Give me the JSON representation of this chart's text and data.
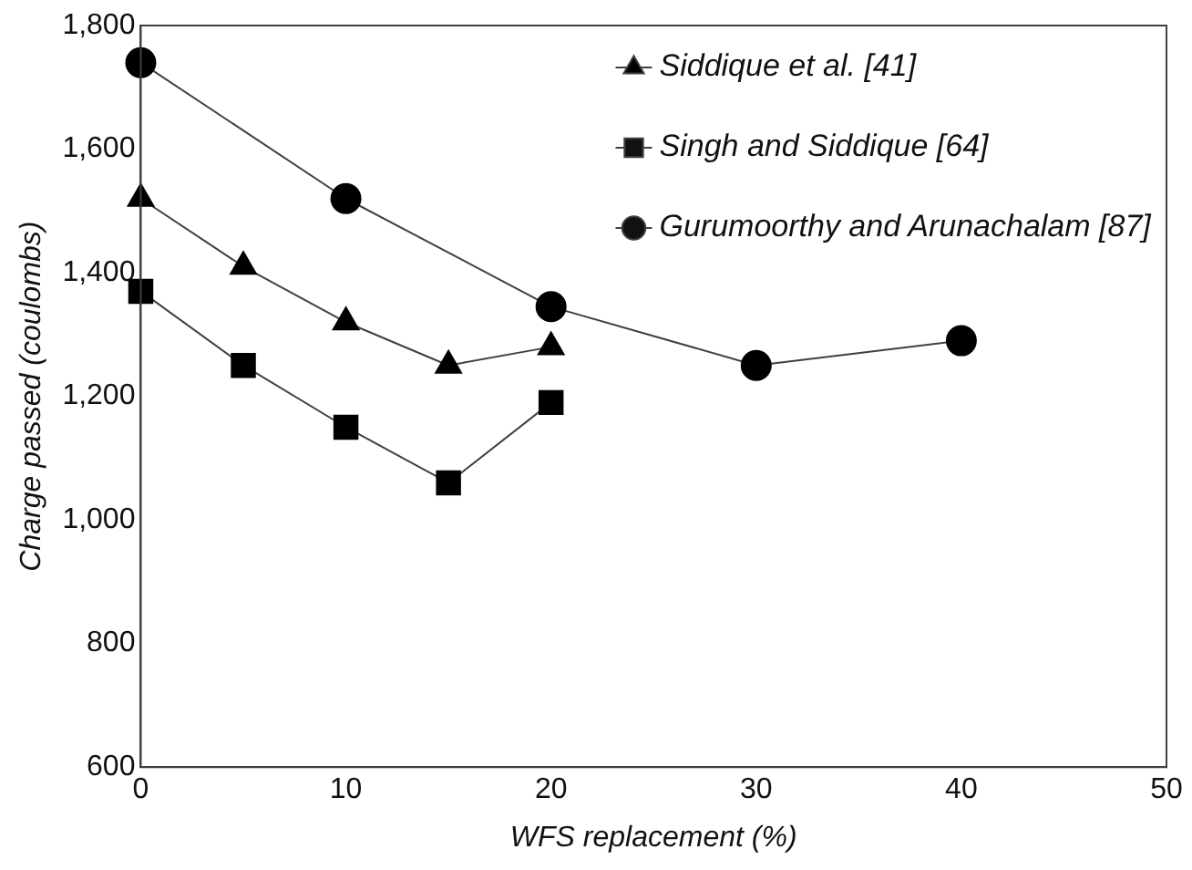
{
  "chart_data": {
    "type": "line",
    "xlabel": "WFS replacement (%)",
    "ylabel": "Charge passed (coulombs)",
    "xlim": [
      0,
      50
    ],
    "xticks": [
      0,
      10,
      20,
      30,
      40,
      50
    ],
    "ylim": [
      600,
      1800
    ],
    "yticks": [
      {
        "value": 600,
        "label": "600"
      },
      {
        "value": 800,
        "label": "800"
      },
      {
        "value": 1000,
        "label": "1,000"
      },
      {
        "value": 1200,
        "label": "1,200"
      },
      {
        "value": 1400,
        "label": "1,400"
      },
      {
        "value": 1600,
        "label": "1,600"
      },
      {
        "value": 1800,
        "label": "1,800"
      }
    ],
    "grid": false,
    "legend": "top right",
    "line_style": "solid",
    "series": [
      {
        "name": "Siddique et al. [41]",
        "color": "#000000",
        "marker": "triangle",
        "x": [
          0,
          5,
          10,
          15,
          20
        ],
        "values": [
          1520,
          1410,
          1320,
          1250,
          1280
        ]
      },
      {
        "name": "Singh and Siddique [64]",
        "color": "#000000",
        "marker": "square",
        "x": [
          0,
          5,
          10,
          15,
          20
        ],
        "values": [
          1370,
          1250,
          1150,
          1060,
          1190
        ]
      },
      {
        "name": "Gurumoorthy and Arunachalam [87]",
        "color": "#000000",
        "marker": "circle",
        "x": [
          0,
          10,
          20,
          30,
          40
        ],
        "values": [
          1740,
          1520,
          1345,
          1250,
          1290
        ]
      }
    ]
  }
}
